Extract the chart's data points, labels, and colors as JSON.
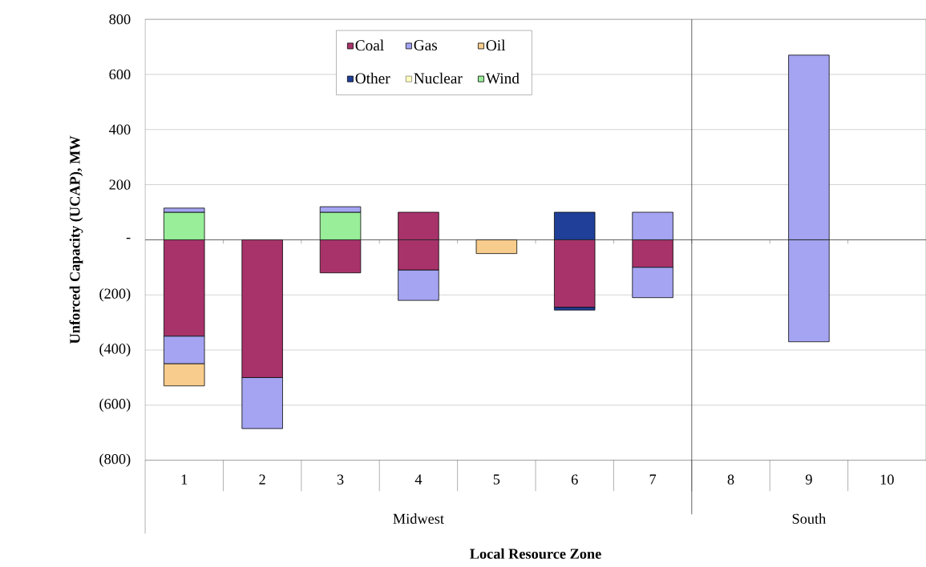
{
  "chart_data": {
    "type": "bar",
    "stacked": true,
    "xlabel": "Local Resource Zone",
    "ylabel": "Unforced Capacity (UCAP), MW",
    "categories": [
      "1",
      "2",
      "3",
      "4",
      "5",
      "6",
      "7",
      "8",
      "9",
      "10"
    ],
    "series": [
      {
        "name": "Coal",
        "color": "#a8336a",
        "values": [
          -350,
          -500,
          -120,
          -110,
          null,
          -245,
          -100,
          null,
          null,
          null
        ]
      },
      {
        "name": "Gas",
        "color": "#a4a4f2",
        "values": [
          -100,
          -185,
          null,
          -110,
          null,
          null,
          -110,
          null,
          -370,
          null
        ]
      },
      {
        "name": "Oil",
        "color": "#f8cc8c",
        "values": [
          -80,
          null,
          null,
          null,
          -50,
          null,
          null,
          null,
          null,
          null
        ]
      },
      {
        "name": "Other",
        "color": "#1f3f99",
        "values": [
          null,
          null,
          null,
          null,
          null,
          -10,
          null,
          null,
          null,
          null
        ]
      },
      {
        "name": "Nuclear",
        "color": "#ffffc0",
        "values": [
          null,
          null,
          null,
          null,
          null,
          null,
          null,
          null,
          null,
          null
        ]
      },
      {
        "name": "Wind",
        "color": "#99ee99",
        "values": [
          100,
          null,
          100,
          null,
          null,
          null,
          null,
          null,
          null,
          null
        ]
      },
      {
        "color": "#a4a4f2",
        "values": [
          15,
          null,
          20,
          null,
          null,
          null,
          100,
          null,
          670,
          null
        ]
      },
      {
        "color": "#1f3f99",
        "values": [
          null,
          null,
          null,
          null,
          null,
          100,
          null,
          null,
          null,
          null
        ]
      },
      {
        "color": "#a8336a",
        "values": [
          null,
          null,
          null,
          100,
          null,
          null,
          null,
          null,
          null,
          null
        ]
      }
    ],
    "ylim": [
      -800,
      800
    ],
    "yticks": [
      800,
      600,
      400,
      200,
      {
        "value": 0,
        "label": "-"
      },
      {
        "value": -200,
        "label": "(200)"
      },
      {
        "value": -400,
        "label": "(400)"
      },
      {
        "value": -600,
        "label": "(600)"
      },
      {
        "value": -800,
        "label": "(800)"
      }
    ],
    "grid": "y",
    "legend": "top",
    "annotations": [
      "Midwest",
      "South"
    ]
  }
}
